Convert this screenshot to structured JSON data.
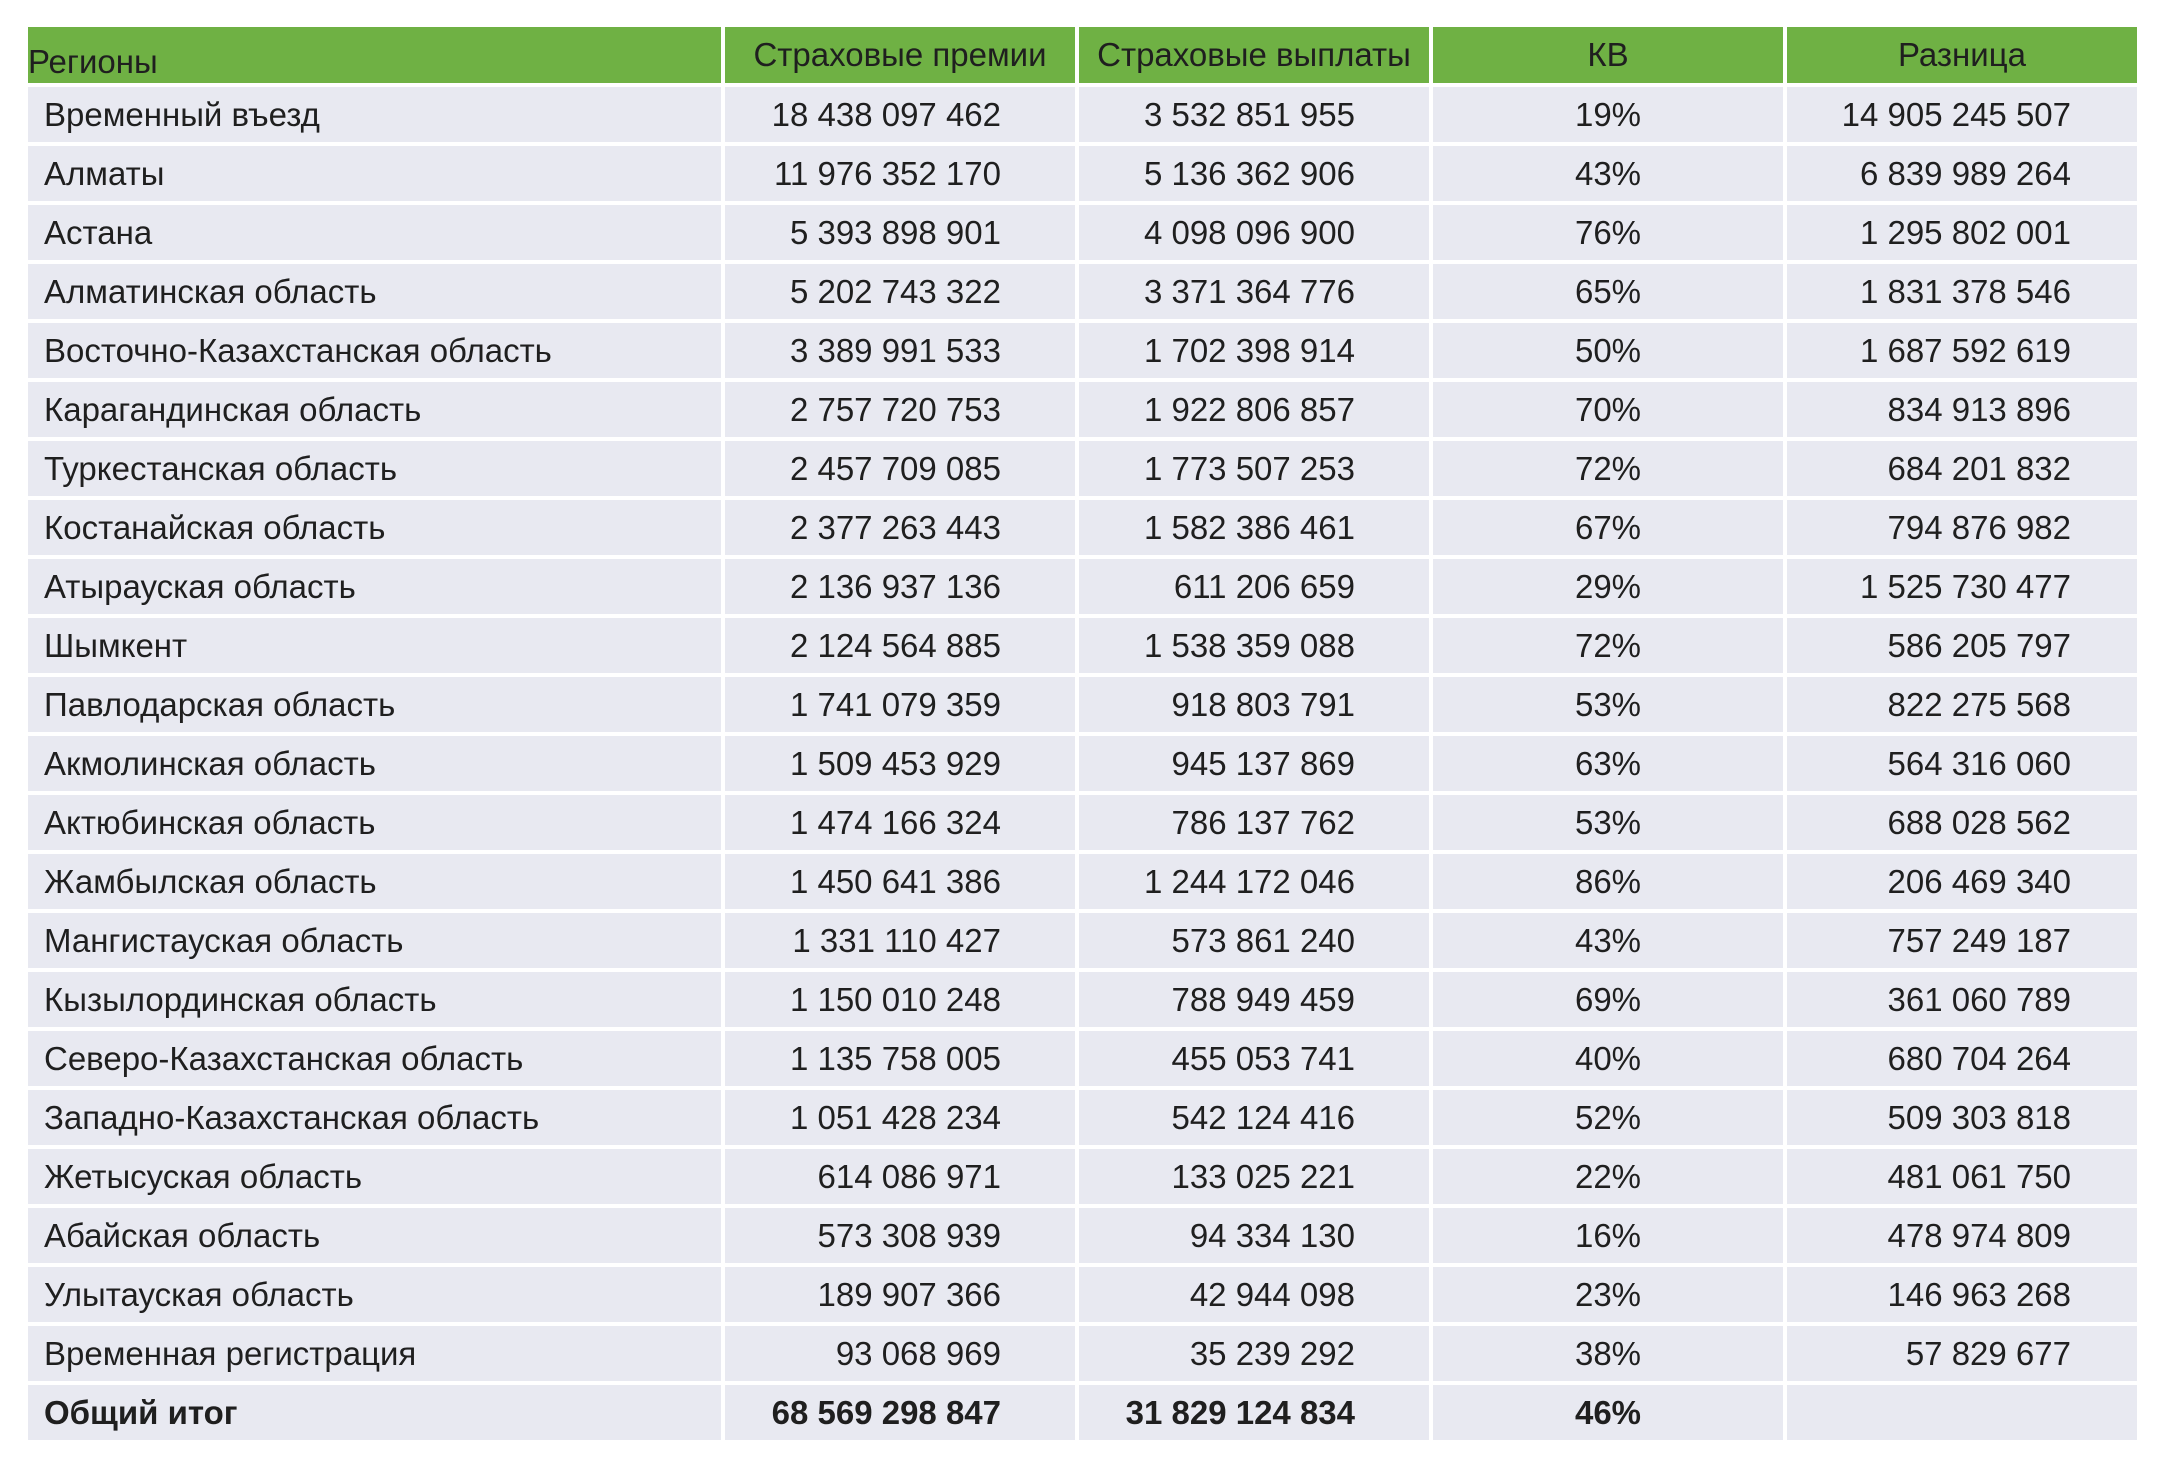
{
  "table": {
    "headers": [
      "Регионы",
      "Страховые премии",
      "Страховые выплаты",
      "КВ",
      "Разница"
    ],
    "rows": [
      [
        "Временный въезд",
        "18 438 097 462",
        "3 532 851 955",
        "19%",
        "14 905 245 507"
      ],
      [
        "Алматы",
        "11 976 352 170",
        "5 136 362 906",
        "43%",
        "6 839 989 264"
      ],
      [
        "Астана",
        "5 393 898 901",
        "4 098 096 900",
        "76%",
        "1 295 802 001"
      ],
      [
        "Алматинская область",
        "5 202 743 322",
        "3 371 364 776",
        "65%",
        "1 831 378 546"
      ],
      [
        "Восточно-Казахстанская область",
        "3 389 991 533",
        "1 702 398 914",
        "50%",
        "1 687 592 619"
      ],
      [
        "Карагандинская область",
        "2 757 720 753",
        "1 922 806 857",
        "70%",
        "834 913 896"
      ],
      [
        "Туркестанская область",
        "2 457 709 085",
        "1 773 507 253",
        "72%",
        "684 201 832"
      ],
      [
        "Костанайская область",
        "2 377 263 443",
        "1 582 386 461",
        "67%",
        "794 876 982"
      ],
      [
        "Атырауская область",
        "2 136 937 136",
        "611 206 659",
        "29%",
        "1 525 730 477"
      ],
      [
        "Шымкент",
        "2 124 564 885",
        "1 538 359 088",
        "72%",
        "586 205 797"
      ],
      [
        "Павлодарская область",
        "1 741 079 359",
        "918 803 791",
        "53%",
        "822 275 568"
      ],
      [
        "Акмолинская область",
        "1 509 453 929",
        "945 137 869",
        "63%",
        "564 316 060"
      ],
      [
        "Актюбинская область",
        "1 474 166 324",
        "786 137 762",
        "53%",
        "688 028 562"
      ],
      [
        "Жамбылская область",
        "1 450 641 386",
        "1 244 172 046",
        "86%",
        "206 469 340"
      ],
      [
        "Мангистауская область",
        "1 331 110 427",
        "573 861 240",
        "43%",
        "757 249 187"
      ],
      [
        "Кызылординская область",
        "1 150 010 248",
        "788 949 459",
        "69%",
        "361 060 789"
      ],
      [
        "Северо-Казахстанская область",
        "1 135 758 005",
        "455 053 741",
        "40%",
        "680 704 264"
      ],
      [
        "Западно-Казахстанская область",
        "1 051 428 234",
        "542 124 416",
        "52%",
        "509 303 818"
      ],
      [
        "Жетысуская область",
        "614 086 971",
        "133 025 221",
        "22%",
        "481 061 750"
      ],
      [
        "Абайская область",
        "573 308 939",
        "94 334 130",
        "16%",
        "478 974 809"
      ],
      [
        "Улытауская область",
        "189 907 366",
        "42 944 098",
        "23%",
        "146 963 268"
      ],
      [
        "Временная регистрация",
        "93 068 969",
        "35 239 292",
        "38%",
        "57 829 677"
      ]
    ],
    "total": [
      "Общий итог",
      "68 569 298 847",
      "31 829 124 834",
      "46%",
      ""
    ]
  },
  "colors": {
    "header_bg": "#6fb144",
    "row_bg": "#e8e9f1"
  }
}
